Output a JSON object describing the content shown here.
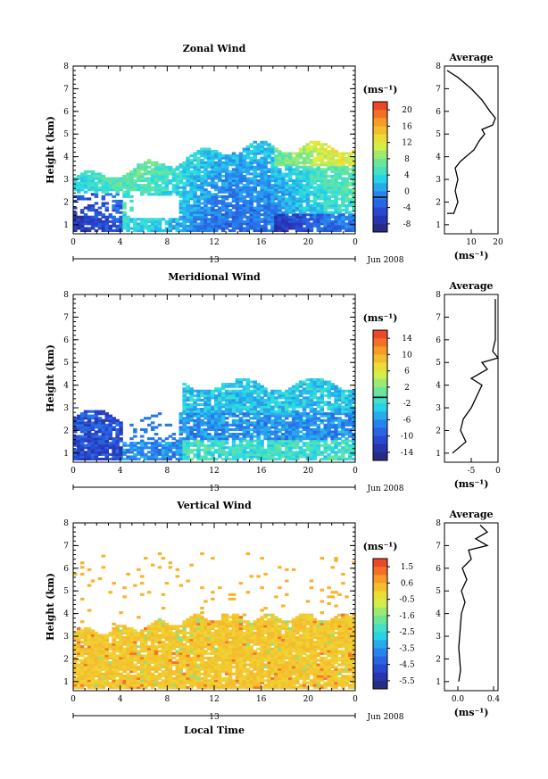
{
  "chart_data": [
    {
      "type": "heatmap",
      "title": "Zonal Wind",
      "xlabel": "",
      "ylabel": "Height (km)",
      "xlim": [
        0,
        24
      ],
      "ylim": [
        0.6,
        8
      ],
      "x_ticks": [
        "0",
        "4",
        "8",
        "12",
        "16",
        "20",
        "0"
      ],
      "y_ticks": [
        "1",
        "2",
        "3",
        "4",
        "5",
        "6",
        "7",
        "8"
      ],
      "date_marker": "13",
      "date_label": "Jun 2008",
      "colorbar": {
        "unit": "(ms⁻¹)",
        "min": -8,
        "max": 22,
        "ticks": [
          "20",
          "16",
          "12",
          "8",
          "4",
          "0",
          "-4",
          "-8"
        ],
        "zero_line": 0
      },
      "field_summary": {
        "typical": 4,
        "max_height_km": 4.6,
        "note_top": 4.2
      },
      "profile": {
        "title": "Average",
        "xlabel": "(ms⁻¹)",
        "xlim": [
          0,
          20
        ],
        "x_ticks": [
          "10",
          "20"
        ],
        "points": [
          [
            1,
            1.5
          ],
          [
            3.5,
            1.5
          ],
          [
            5,
            2
          ],
          [
            4,
            2.5
          ],
          [
            5,
            3
          ],
          [
            4,
            3.5
          ],
          [
            6,
            3.8
          ],
          [
            8,
            4
          ],
          [
            11,
            4.3
          ],
          [
            13,
            4.7
          ],
          [
            15,
            5
          ],
          [
            14,
            5.2
          ],
          [
            18,
            5.4
          ],
          [
            19,
            5.7
          ],
          [
            17,
            6
          ],
          [
            14,
            6.5
          ],
          [
            10,
            7
          ],
          [
            5,
            7.5
          ],
          [
            1,
            7.8
          ]
        ]
      }
    },
    {
      "type": "heatmap",
      "title": "Meridional Wind",
      "xlabel": "",
      "ylabel": "Height (km)",
      "xlim": [
        0,
        24
      ],
      "ylim": [
        0.6,
        8
      ],
      "x_ticks": [
        "0",
        "4",
        "8",
        "12",
        "16",
        "20",
        "0"
      ],
      "y_ticks": [
        "1",
        "2",
        "3",
        "4",
        "5",
        "6",
        "7",
        "8"
      ],
      "date_marker": "13",
      "date_label": "Jun 2008",
      "colorbar": {
        "unit": "(ms⁻¹)",
        "min": -15,
        "max": 16,
        "ticks": [
          "14",
          "10",
          "6",
          "2",
          "-2",
          "-6",
          "-10",
          "-14"
        ],
        "zero_line": 0
      },
      "profile": {
        "title": "Average",
        "xlabel": "(ms⁻¹)",
        "xlim": [
          -10,
          0
        ],
        "x_ticks": [
          "-5",
          "0"
        ],
        "points": [
          [
            -8.5,
            1
          ],
          [
            -6,
            1.5
          ],
          [
            -7,
            2
          ],
          [
            -6.5,
            2.5
          ],
          [
            -5,
            3
          ],
          [
            -4,
            3.5
          ],
          [
            -3,
            4
          ],
          [
            -5,
            4.3
          ],
          [
            -2,
            4.7
          ],
          [
            -3,
            5
          ],
          [
            0,
            5.2
          ],
          [
            -1,
            5.5
          ],
          [
            -0.5,
            6
          ],
          [
            -0.5,
            7
          ],
          [
            -0.5,
            7.8
          ]
        ]
      }
    },
    {
      "type": "heatmap",
      "title": "Vertical Wind",
      "xlabel": "Local Time",
      "ylabel": "Height (km)",
      "xlim": [
        0,
        24
      ],
      "ylim": [
        0.6,
        8
      ],
      "x_ticks": [
        "0",
        "4",
        "8",
        "12",
        "16",
        "20",
        "0"
      ],
      "y_ticks": [
        "1",
        "2",
        "3",
        "4",
        "5",
        "6",
        "7",
        "8"
      ],
      "date_marker": "13",
      "date_label": "Jun 2008",
      "colorbar": {
        "unit": "(ms⁻¹)",
        "min": -6,
        "max": 2,
        "ticks": [
          "1.5",
          "0.6",
          "-0.5",
          "-1.6",
          "-2.5",
          "-3.5",
          "-4.5",
          "-5.5"
        ]
      },
      "profile": {
        "title": "Average",
        "xlabel": "(ms⁻¹)",
        "xlim": [
          -0.15,
          0.45
        ],
        "x_ticks": [
          "0.0",
          "0.4"
        ],
        "points": [
          [
            0.01,
            1
          ],
          [
            0.03,
            1.5
          ],
          [
            0.02,
            2
          ],
          [
            0.01,
            2.5
          ],
          [
            0.02,
            3
          ],
          [
            0.03,
            3.5
          ],
          [
            0.04,
            4
          ],
          [
            0.08,
            4.5
          ],
          [
            0.04,
            5
          ],
          [
            0.1,
            5.5
          ],
          [
            0.05,
            6
          ],
          [
            0.15,
            6.4
          ],
          [
            0.12,
            6.8
          ],
          [
            0.33,
            7
          ],
          [
            0.2,
            7.3
          ],
          [
            0.33,
            7.6
          ],
          [
            0.25,
            7.9
          ]
        ]
      }
    }
  ]
}
